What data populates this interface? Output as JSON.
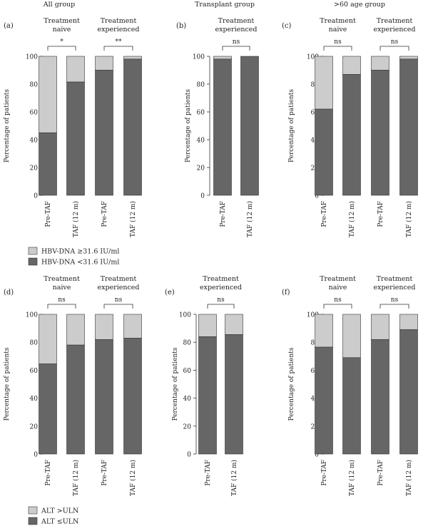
{
  "colors": {
    "dark": "#666666",
    "light": "#cccccc",
    "stroke": "#333333",
    "text": "#222222"
  },
  "column_titles": [
    "All group",
    "Transplant group",
    ">60 age group"
  ],
  "y_axis_label": "Percentage of patients",
  "y_ticks": [
    "0",
    "20",
    "40",
    "60",
    "80",
    "100"
  ],
  "legends": {
    "hbv": [
      {
        "label": "HBV-DNA ≥31.6 IU/ml",
        "color": "#cccccc"
      },
      {
        "label": "HBV-DNA <31.6 IU/ml",
        "color": "#666666"
      }
    ],
    "alt": [
      {
        "label": "ALT >ULN",
        "color": "#cccccc"
      },
      {
        "label": "ALT ≤ULN",
        "color": "#666666"
      }
    ]
  },
  "chart_data": [
    {
      "panel": "(a)",
      "type": "bar",
      "stacked": true,
      "ylim": [
        0,
        100
      ],
      "ylabel": "Percentage of patients",
      "categories": [
        "Pre-TAF",
        "TAF (12 m)",
        "Pre-TAF",
        "TAF (12 m)"
      ],
      "series": [
        {
          "name": "HBV-DNA <31.6 IU/ml",
          "values": [
            45,
            81.5,
            90,
            98
          ]
        },
        {
          "name": "HBV-DNA ≥31.6 IU/ml",
          "values": [
            55,
            18.5,
            10,
            2
          ]
        }
      ],
      "groups": [
        {
          "label": [
            "Treatment",
            "naive"
          ],
          "bars": [
            0,
            1
          ],
          "significance": "*"
        },
        {
          "label": [
            "Treatment",
            "experienced"
          ],
          "bars": [
            2,
            3
          ],
          "significance": "**"
        }
      ]
    },
    {
      "panel": "(b)",
      "type": "bar",
      "stacked": true,
      "ylim": [
        0,
        100
      ],
      "ylabel": "Percentage of patients",
      "categories": [
        "Pre-TAF",
        "TAF (12 m)"
      ],
      "series": [
        {
          "name": "HBV-DNA <31.6 IU/ml",
          "values": [
            98,
            100
          ]
        },
        {
          "name": "HBV-DNA ≥31.6 IU/ml",
          "values": [
            2,
            0
          ]
        }
      ],
      "groups": [
        {
          "label": [
            "Treatment",
            "experienced"
          ],
          "bars": [
            0,
            1
          ],
          "significance": "ns"
        }
      ]
    },
    {
      "panel": "(c)",
      "type": "bar",
      "stacked": true,
      "ylim": [
        0,
        100
      ],
      "ylabel": "Percentage of patients",
      "categories": [
        "Pre-TAF",
        "TAF (12 m)",
        "Pre-TAF",
        "TAF (12 m)"
      ],
      "series": [
        {
          "name": "HBV-DNA <31.6 IU/ml",
          "values": [
            62,
            87,
            90,
            98
          ]
        },
        {
          "name": "HBV-DNA ≥31.6 IU/ml",
          "values": [
            38,
            13,
            10,
            2
          ]
        }
      ],
      "groups": [
        {
          "label": [
            "Treatment",
            "naive"
          ],
          "bars": [
            0,
            1
          ],
          "significance": "ns"
        },
        {
          "label": [
            "Treatment",
            "experienced"
          ],
          "bars": [
            2,
            3
          ],
          "significance": "ns"
        }
      ]
    },
    {
      "panel": "(d)",
      "type": "bar",
      "stacked": true,
      "ylim": [
        0,
        100
      ],
      "ylabel": "Percentage of patients",
      "categories": [
        "Pre-TAF",
        "TAF (12 m)",
        "Pre-TAF",
        "TAF (12 m)"
      ],
      "series": [
        {
          "name": "ALT ≤ULN",
          "values": [
            64.5,
            78,
            82,
            83
          ]
        },
        {
          "name": "ALT >ULN",
          "values": [
            35.5,
            22,
            18,
            17
          ]
        }
      ],
      "groups": [
        {
          "label": [
            "Treatment",
            "naive"
          ],
          "bars": [
            0,
            1
          ],
          "significance": "ns"
        },
        {
          "label": [
            "Treatment",
            "experienced"
          ],
          "bars": [
            2,
            3
          ],
          "significance": "ns"
        }
      ]
    },
    {
      "panel": "(e)",
      "type": "bar",
      "stacked": true,
      "ylim": [
        0,
        100
      ],
      "ylabel": "Percentage of patients",
      "categories": [
        "Pre-TAF",
        "TAF (12 m)"
      ],
      "series": [
        {
          "name": "ALT ≤ULN",
          "values": [
            84,
            85.5
          ]
        },
        {
          "name": "ALT >ULN",
          "values": [
            16,
            14.5
          ]
        }
      ],
      "groups": [
        {
          "label": [
            "Treatment",
            "experienced"
          ],
          "bars": [
            0,
            1
          ],
          "significance": "ns"
        }
      ]
    },
    {
      "panel": "(f)",
      "type": "bar",
      "stacked": true,
      "ylim": [
        0,
        100
      ],
      "ylabel": "Percentage of patients",
      "categories": [
        "Pre-TAF",
        "TAF (12 m)",
        "Pre-TAF",
        "TAF (12 m)"
      ],
      "series": [
        {
          "name": "ALT ≤ULN",
          "values": [
            76.5,
            69,
            82,
            89
          ]
        },
        {
          "name": "ALT >ULN",
          "values": [
            23.5,
            31,
            18,
            11
          ]
        }
      ],
      "groups": [
        {
          "label": [
            "Treatment",
            "naive"
          ],
          "bars": [
            0,
            1
          ],
          "significance": "ns"
        },
        {
          "label": [
            "Treatment",
            "experienced"
          ],
          "bars": [
            2,
            3
          ],
          "significance": "ns"
        }
      ]
    }
  ]
}
